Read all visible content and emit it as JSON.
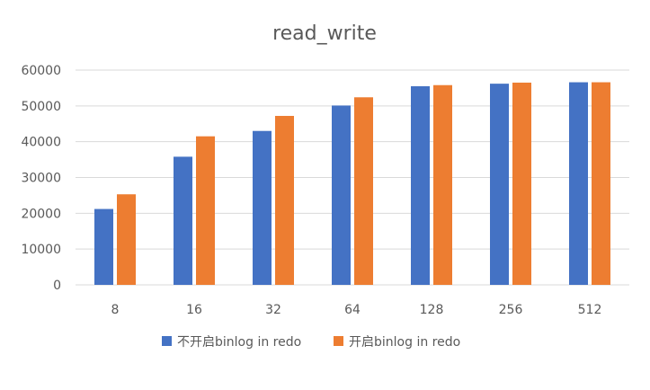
{
  "chart_data": {
    "type": "bar",
    "title": "read_write",
    "xlabel": "",
    "ylabel": "",
    "categories": [
      "8",
      "16",
      "32",
      "64",
      "128",
      "256",
      "512"
    ],
    "series": [
      {
        "name": "不开启binlog in redo",
        "color": "#4472c4",
        "values": [
          21200,
          35800,
          43000,
          50100,
          55500,
          56200,
          56600
        ]
      },
      {
        "name": "开启binlog in redo",
        "color": "#ed7d31",
        "values": [
          25300,
          41500,
          47200,
          52400,
          55800,
          56500,
          56600
        ]
      }
    ],
    "ylim": [
      0,
      60000
    ],
    "yticks": [
      "0",
      "10000",
      "20000",
      "30000",
      "40000",
      "50000",
      "60000"
    ],
    "grid": true,
    "legend_position": "bottom"
  }
}
